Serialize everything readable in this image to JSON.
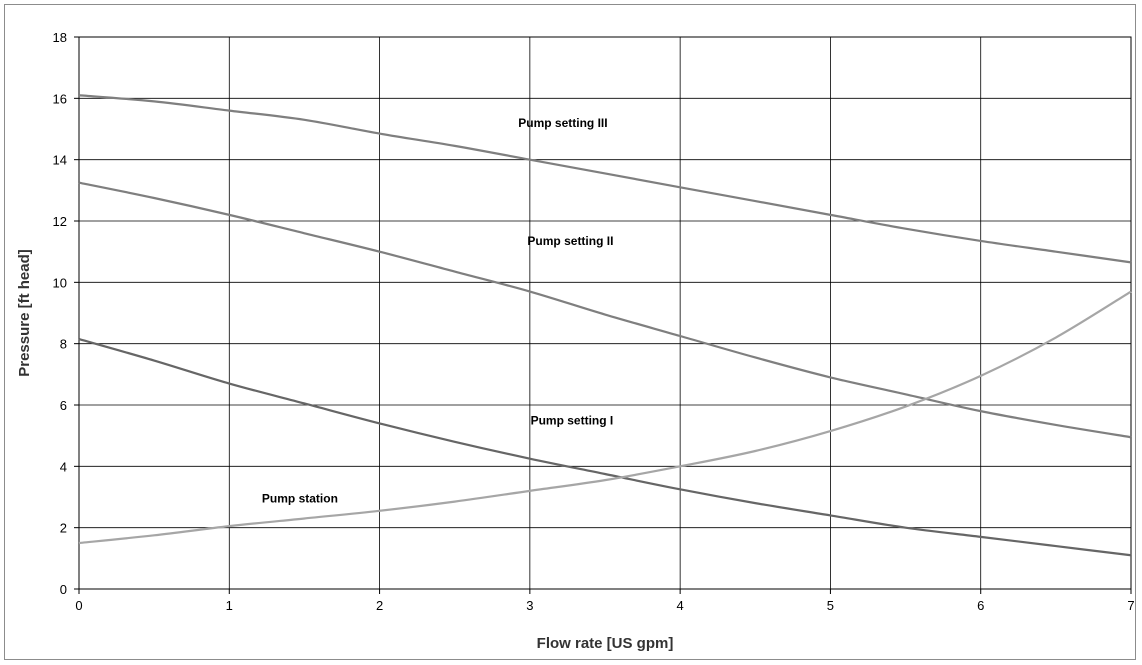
{
  "chart_data": {
    "type": "line",
    "title": "",
    "xlabel": "Flow rate [US gpm]",
    "ylabel": "Pressure [ft head]",
    "xlim": [
      0,
      7
    ],
    "ylim": [
      0,
      18
    ],
    "xticks": [
      0,
      1,
      2,
      3,
      4,
      5,
      6,
      7
    ],
    "yticks": [
      0,
      2,
      4,
      6,
      8,
      10,
      12,
      14,
      16,
      18
    ],
    "grid": true,
    "legend": "none",
    "line_color": "#808080",
    "grid_color": "#000000",
    "series": [
      {
        "name": "Pump setting III",
        "color": "#7f7f7f",
        "x": [
          0,
          0.5,
          1,
          1.5,
          2,
          2.5,
          3,
          3.5,
          4,
          4.5,
          5,
          5.5,
          6,
          6.5,
          7
        ],
        "y": [
          16.1,
          15.9,
          15.6,
          15.3,
          14.85,
          14.45,
          14.0,
          13.55,
          13.1,
          12.65,
          12.2,
          11.75,
          11.35,
          11.0,
          10.65
        ]
      },
      {
        "name": "Pump setting II",
        "color": "#7f7f7f",
        "x": [
          0,
          0.5,
          1,
          1.5,
          2,
          2.5,
          3,
          3.5,
          4,
          4.5,
          5,
          5.5,
          6,
          6.5,
          7
        ],
        "y": [
          13.25,
          12.75,
          12.2,
          11.6,
          11.0,
          10.35,
          9.7,
          8.95,
          8.25,
          7.55,
          6.9,
          6.35,
          5.8,
          5.35,
          4.95
        ]
      },
      {
        "name": "Pump setting I",
        "color": "#666666",
        "x": [
          0,
          0.5,
          1,
          1.5,
          2,
          2.5,
          3,
          3.5,
          4,
          4.5,
          5,
          5.5,
          6,
          6.5,
          7
        ],
        "y": [
          8.15,
          7.45,
          6.7,
          6.05,
          5.4,
          4.8,
          4.25,
          3.75,
          3.25,
          2.8,
          2.4,
          2.0,
          1.7,
          1.4,
          1.1
        ]
      },
      {
        "name": "Pump station",
        "color": "#a6a6a6",
        "x": [
          0,
          0.5,
          1,
          1.5,
          2,
          2.5,
          3,
          3.5,
          4,
          4.5,
          5,
          5.5,
          6,
          6.5,
          7
        ],
        "y": [
          1.5,
          1.75,
          2.05,
          2.3,
          2.55,
          2.85,
          3.2,
          3.55,
          4.0,
          4.5,
          5.15,
          5.95,
          6.95,
          8.2,
          9.7
        ]
      }
    ]
  }
}
